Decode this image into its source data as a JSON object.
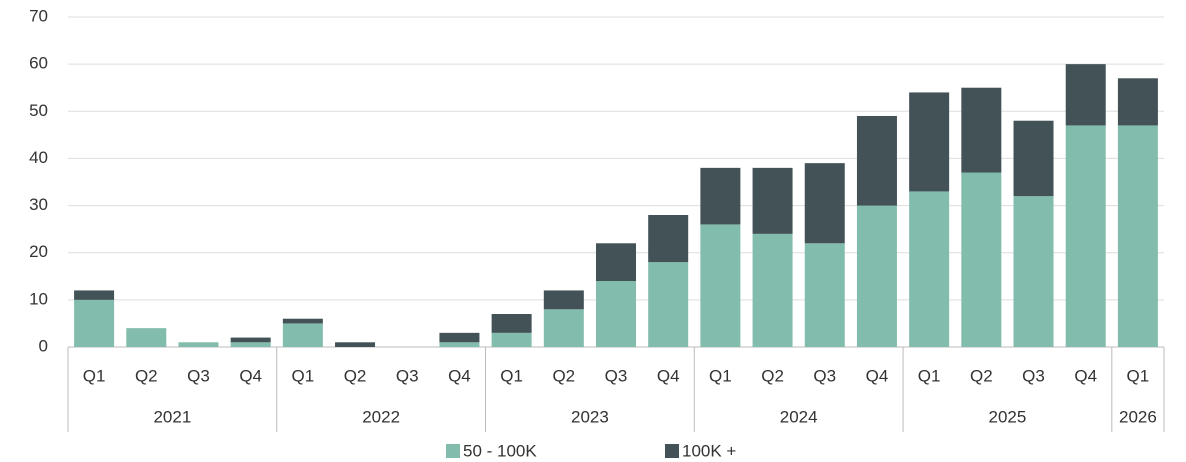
{
  "chart_data": {
    "type": "stacked_bar",
    "groups": [
      {
        "name": "2021",
        "quarters": [
          "Q1",
          "Q2",
          "Q3",
          "Q4"
        ]
      },
      {
        "name": "2022",
        "quarters": [
          "Q1",
          "Q2",
          "Q3",
          "Q4"
        ]
      },
      {
        "name": "2023",
        "quarters": [
          "Q1",
          "Q2",
          "Q3",
          "Q4"
        ]
      },
      {
        "name": "2024",
        "quarters": [
          "Q1",
          "Q2",
          "Q3",
          "Q4"
        ]
      },
      {
        "name": "2025",
        "quarters": [
          "Q1",
          "Q2",
          "Q3",
          "Q4"
        ]
      },
      {
        "name": "2026",
        "quarters": [
          "Q1"
        ]
      }
    ],
    "series": [
      {
        "name": "50 - 100K",
        "color": "#82bcad",
        "values": [
          10,
          4,
          1,
          1,
          5,
          0,
          0,
          1,
          3,
          8,
          14,
          18,
          26,
          24,
          22,
          30,
          33,
          37,
          32,
          47,
          47
        ]
      },
      {
        "name": "100K +",
        "color": "#435257",
        "values": [
          2,
          0,
          0,
          1,
          1,
          1,
          0,
          2,
          4,
          4,
          8,
          10,
          12,
          14,
          17,
          19,
          21,
          18,
          16,
          13,
          10
        ]
      }
    ],
    "ylim": [
      0,
      70
    ],
    "yticks": [
      0,
      10,
      20,
      30,
      40,
      50,
      60,
      70
    ],
    "grid": true,
    "legend": "bottom"
  }
}
